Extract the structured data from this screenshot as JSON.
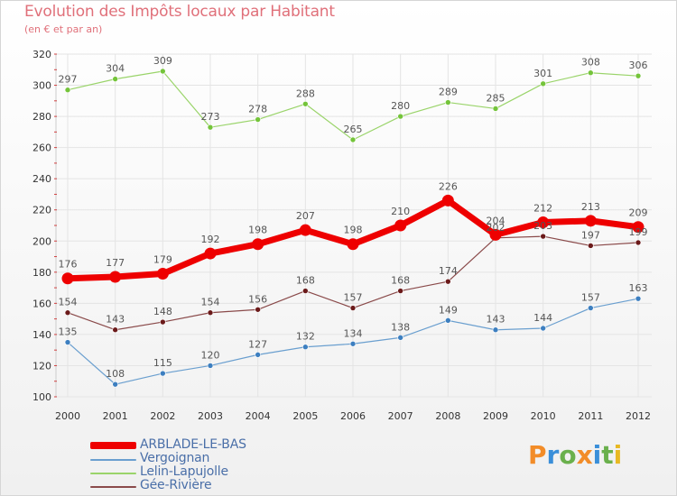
{
  "title": "Evolution des Impôts locaux par Habitant",
  "subtitle": "(en € et par an)",
  "logo_text": "Proxiti",
  "colors": {
    "title": "#e0707a",
    "grid": "#e4e4e4",
    "axis_text": "#333333",
    "value_label": "#555555",
    "logo_letters": [
      "#f28c28",
      "#3a8fd9",
      "#6ab04c",
      "#f28c28",
      "#3a8fd9",
      "#6ab04c",
      "#e8b923"
    ]
  },
  "chart_data": {
    "type": "line",
    "title": "Evolution des Impôts locaux par Habitant",
    "subtitle": "(en € et par an)",
    "xlabel": "",
    "ylabel": "",
    "x": [
      "2000",
      "2001",
      "2002",
      "2003",
      "2004",
      "2005",
      "2006",
      "2007",
      "2008",
      "2009",
      "2010",
      "2011",
      "2012"
    ],
    "ylim": [
      100,
      320
    ],
    "yticks": [
      100,
      120,
      140,
      160,
      180,
      200,
      220,
      240,
      260,
      280,
      300,
      320
    ],
    "grid": true,
    "legend_position": "bottom-left",
    "series": [
      {
        "name": "ARBLADE-LE-BAS",
        "color": "#ee0000",
        "marker": "#ee0000",
        "width": 7,
        "values": [
          176,
          177,
          179,
          192,
          198,
          207,
          198,
          210,
          226,
          204,
          212,
          213,
          209
        ],
        "labels": [
          "176",
          "177",
          "179",
          "192",
          "198",
          "207",
          "198",
          "210",
          "226",
          "204",
          "212",
          "213",
          "209"
        ]
      },
      {
        "name": "Vergoignan",
        "color": "#6a9fcf",
        "marker": "#3d7fc0",
        "width": 1.2,
        "values": [
          135,
          108,
          115,
          120,
          127,
          132,
          134,
          138,
          149,
          143,
          144,
          157,
          163
        ],
        "labels": [
          "135",
          "108",
          "115",
          "120",
          "127",
          "132",
          "134",
          "138",
          "149",
          "143",
          "144",
          "157",
          "163"
        ]
      },
      {
        "name": "Lelin-Lapujolle",
        "color": "#9ad46a",
        "marker": "#74c43a",
        "width": 1.2,
        "values": [
          297,
          304,
          309,
          273,
          278,
          288,
          265,
          280,
          289,
          285,
          301,
          308,
          306
        ],
        "labels": [
          "297",
          "304",
          "309",
          "273",
          "278",
          "288",
          "265",
          "280",
          "289",
          "285",
          "301",
          "308",
          "306"
        ]
      },
      {
        "name": "Gée-Rivière",
        "color": "#8a4a4a",
        "marker": "#6b1a1a",
        "width": 1.2,
        "values": [
          154,
          143,
          148,
          154,
          156,
          168,
          157,
          168,
          174,
          202,
          203,
          197,
          199
        ],
        "labels": [
          "154",
          "143",
          "148",
          "154",
          "156",
          "168",
          "157",
          "168",
          "174",
          "202",
          "203",
          "197",
          "199"
        ]
      }
    ]
  }
}
